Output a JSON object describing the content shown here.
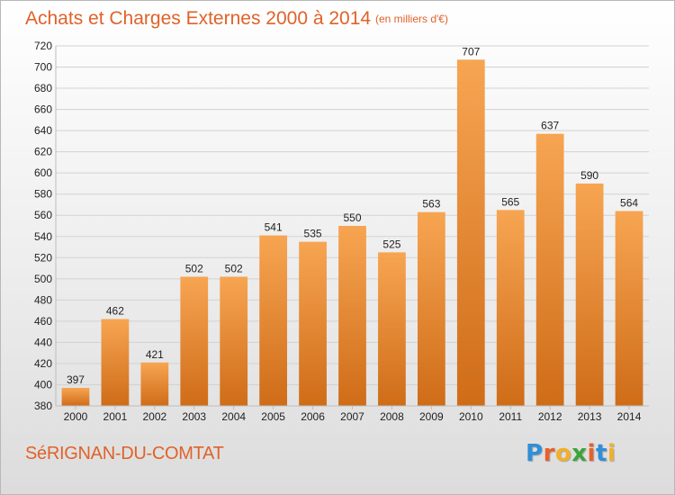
{
  "chart_data": {
    "type": "bar",
    "title": "Achats et Charges Externes 2000 à 2014",
    "unit": "(en milliers d'€)",
    "categories": [
      "2000",
      "2001",
      "2002",
      "2003",
      "2004",
      "2005",
      "2006",
      "2007",
      "2008",
      "2009",
      "2010",
      "2011",
      "2012",
      "2013",
      "2014"
    ],
    "values": [
      397,
      462,
      421,
      502,
      502,
      541,
      535,
      550,
      525,
      563,
      707,
      565,
      637,
      590,
      564
    ],
    "ylim": [
      380,
      720
    ],
    "yticks": [
      380,
      400,
      420,
      440,
      460,
      480,
      500,
      520,
      540,
      560,
      580,
      600,
      620,
      640,
      660,
      680,
      700,
      720
    ],
    "grid": true,
    "bar_color": "#f0923a"
  },
  "footer": {
    "commune": "SéRIGNAN-DU-COMTAT",
    "logo_letters": [
      {
        "ch": "P",
        "color": "#2f8fd8"
      },
      {
        "ch": "r",
        "color": "#e8602a"
      },
      {
        "ch": "o",
        "color": "#f2b02a"
      },
      {
        "ch": "x",
        "color": "#3aa43a"
      },
      {
        "ch": "i",
        "color": "#e8602a"
      },
      {
        "ch": "t",
        "color": "#2f8fd8"
      },
      {
        "ch": "i",
        "color": "#f2b02a"
      }
    ]
  }
}
